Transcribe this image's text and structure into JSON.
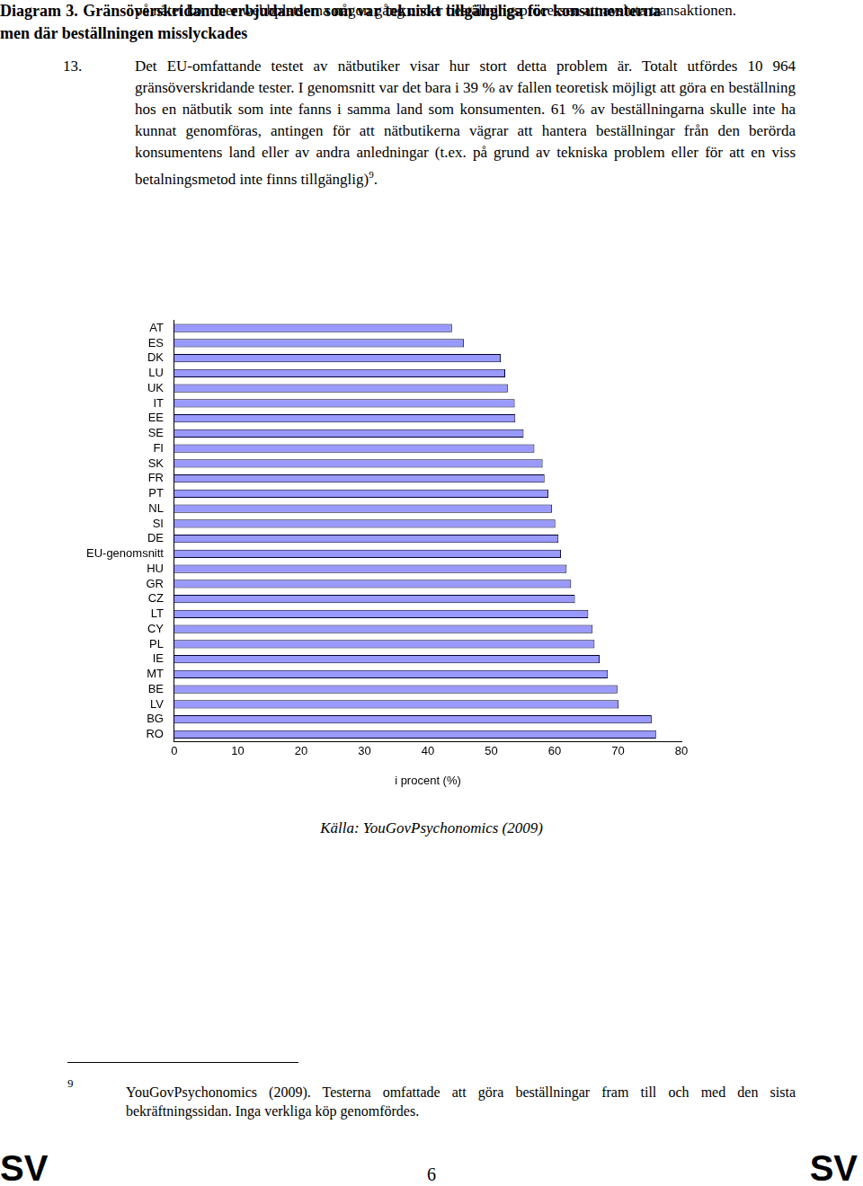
{
  "top_text": "på nätet kommer webbplatserna någon gång under beställningsprocessen att avsluta transaktionen.",
  "paragraph": {
    "number": "13.",
    "text": "Det EU-omfattande testet av nätbutiker visar hur stort detta problem är. Totalt utfördes 10 964 gränsöverskridande tester. I genomsnitt var det bara i 39 % av fallen teoretisk möjligt att göra en beställning hos en nätbutik som inte fanns i samma land som konsumenten. 61 % av beställningarna skulle inte ha kunnat genomföras, antingen för att nätbutikerna vägrar att hantera beställningar från den berörda konsumentens land eller av andra anledningar (t.ex. på grund av tekniska problem eller för att en viss betalningsmetod inte finns tillgänglig)",
    "footnote_ref": "9",
    "after": "."
  },
  "chart_data": {
    "type": "bar",
    "orientation": "horizontal",
    "title": "Diagram 3. Gränsöverskridande erbjudanden som var tekniskt tillgängliga för konsumenterna men där beställningen misslyckades",
    "x_label": "i procent (%)",
    "categories": [
      "AT",
      "ES",
      "DK",
      "LU",
      "UK",
      "IT",
      "EE",
      "SE",
      "FI",
      "SK",
      "FR",
      "PT",
      "NL",
      "SI",
      "DE",
      "EU-genomsnitt",
      "HU",
      "GR",
      "CZ",
      "LT",
      "CY",
      "PL",
      "IE",
      "MT",
      "BE",
      "LV",
      "BG",
      "RO"
    ],
    "values": [
      43.8,
      45.7,
      51.5,
      52.2,
      52.6,
      53.7,
      53.8,
      55.1,
      56.8,
      58.1,
      58.4,
      59.0,
      59.6,
      60.1,
      60.6,
      61.0,
      61.9,
      62.6,
      63.2,
      65.3,
      66.0,
      66.3,
      67.1,
      68.4,
      69.9,
      70.1,
      75.3,
      76.0
    ],
    "color": "#9999ff",
    "xlim": [
      0,
      80
    ],
    "xticks": [
      0,
      10,
      20,
      30,
      40,
      50,
      60,
      70,
      80
    ],
    "grid": false
  },
  "source": "Källa: YouGovPsychonomics (2009)",
  "footnote": {
    "number": "9",
    "text": "YouGovPsychonomics (2009). Testerna omfattade att göra beställningar fram till och med den sista bekräftningssidan. Inga verkliga köp genomfördes."
  },
  "footer": {
    "left": "SV",
    "page": "6",
    "right": "SV"
  }
}
